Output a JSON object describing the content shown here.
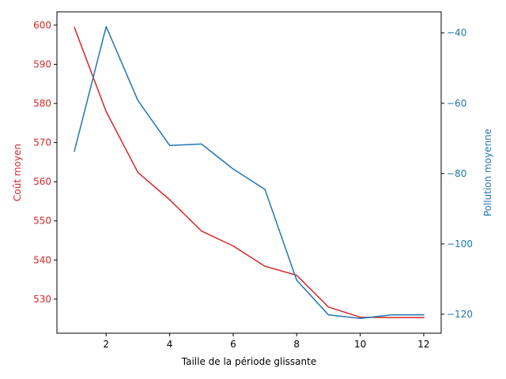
{
  "chart_data": {
    "type": "line",
    "title": "",
    "xlabel": "Taille de la période glissante",
    "ylabel_left": "Coût moyen",
    "ylabel_right": "Pollution moyenne",
    "xlim": [
      0.45,
      12.55
    ],
    "ylim_left": [
      521.3,
      603.4
    ],
    "ylim_right": [
      -125.4,
      -34.0
    ],
    "x_ticks": [
      2,
      4,
      6,
      8,
      10,
      12
    ],
    "y_ticks_left": [
      530,
      540,
      550,
      560,
      570,
      580,
      590,
      600
    ],
    "y_ticks_right": [
      -120,
      -100,
      -80,
      -60,
      -40
    ],
    "grid": false,
    "legend": "none",
    "x": [
      1,
      2,
      3,
      4,
      5,
      6,
      7,
      8,
      9,
      10,
      11,
      12
    ],
    "series": [
      {
        "name": "Coût moyen",
        "axis": "left",
        "color": "#d62728",
        "values": [
          599.4,
          577.9,
          562.4,
          555.4,
          547.4,
          543.6,
          538.4,
          536.1,
          528.0,
          525.4,
          525.3,
          525.3
        ]
      },
      {
        "name": "Pollution moyenne",
        "axis": "right",
        "color": "#1f77b4",
        "values": [
          -73.6,
          -38.2,
          -59.2,
          -72.0,
          -71.6,
          -78.7,
          -84.5,
          -110.3,
          -120.2,
          -121.2,
          -120.2,
          -120.2
        ]
      }
    ]
  },
  "colors": {
    "left_axis": "#d62728",
    "right_axis": "#1f77b4",
    "frame": "#000000"
  }
}
